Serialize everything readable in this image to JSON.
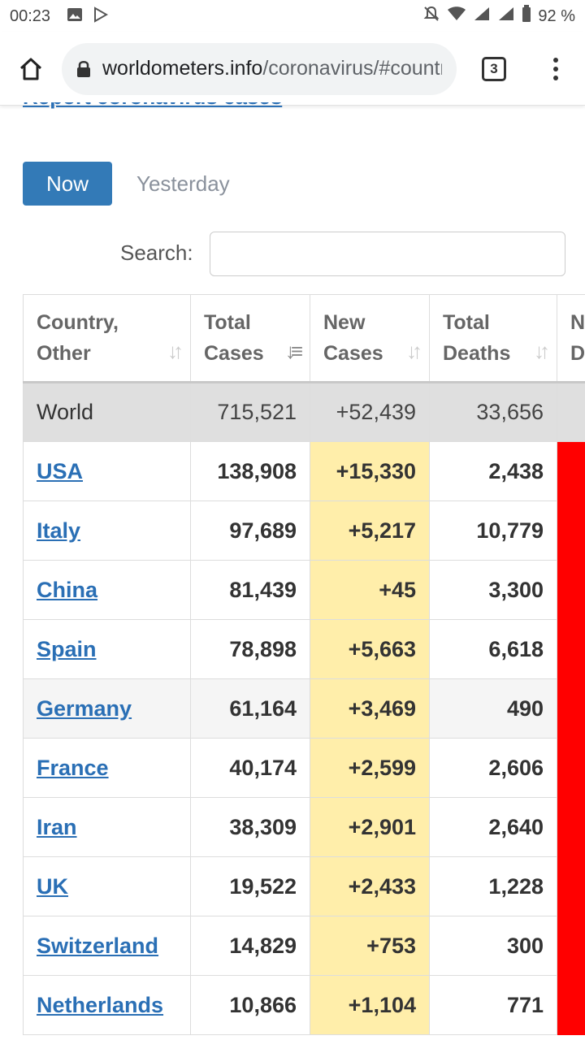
{
  "statusbar": {
    "time": "00:23",
    "battery": "92 %"
  },
  "browser": {
    "url_domain": "worldometers.info",
    "url_path": "/coronavirus/#countries",
    "tab_count": "3"
  },
  "page": {
    "cut_link": "Report coronavirus cases",
    "now_label": "Now",
    "yesterday_label": "Yesterday",
    "search_label": "Search:",
    "search_value": ""
  },
  "table": {
    "headers": [
      {
        "line1": "Country,",
        "line2": "Other"
      },
      {
        "line1": "Total",
        "line2": "Cases"
      },
      {
        "line1": "New",
        "line2": "Cases"
      },
      {
        "line1": "Total",
        "line2": "Deaths"
      },
      {
        "line1": "N",
        "line2": "De"
      }
    ],
    "world": {
      "country": "World",
      "total_cases": "715,521",
      "new_cases": "+52,439",
      "total_deaths": "33,656"
    },
    "rows": [
      {
        "country": "USA",
        "total_cases": "138,908",
        "new_cases": "+15,330",
        "total_deaths": "2,438"
      },
      {
        "country": "Italy",
        "total_cases": "97,689",
        "new_cases": "+5,217",
        "total_deaths": "10,779"
      },
      {
        "country": "China",
        "total_cases": "81,439",
        "new_cases": "+45",
        "total_deaths": "3,300"
      },
      {
        "country": "Spain",
        "total_cases": "78,898",
        "new_cases": "+5,663",
        "total_deaths": "6,618"
      },
      {
        "country": "Germany",
        "total_cases": "61,164",
        "new_cases": "+3,469",
        "total_deaths": "490"
      },
      {
        "country": "France",
        "total_cases": "40,174",
        "new_cases": "+2,599",
        "total_deaths": "2,606"
      },
      {
        "country": "Iran",
        "total_cases": "38,309",
        "new_cases": "+2,901",
        "total_deaths": "2,640"
      },
      {
        "country": "UK",
        "total_cases": "19,522",
        "new_cases": "+2,433",
        "total_deaths": "1,228"
      },
      {
        "country": "Switzerland",
        "total_cases": "14,829",
        "new_cases": "+753",
        "total_deaths": "300"
      },
      {
        "country": "Netherlands",
        "total_cases": "10,866",
        "new_cases": "+1,104",
        "total_deaths": "771"
      }
    ]
  },
  "colors": {
    "accent": "#337ab7",
    "link": "#2a6fb5",
    "new_cases_bg": "#ffeeaa",
    "new_deaths_bg": "#ff0000"
  }
}
